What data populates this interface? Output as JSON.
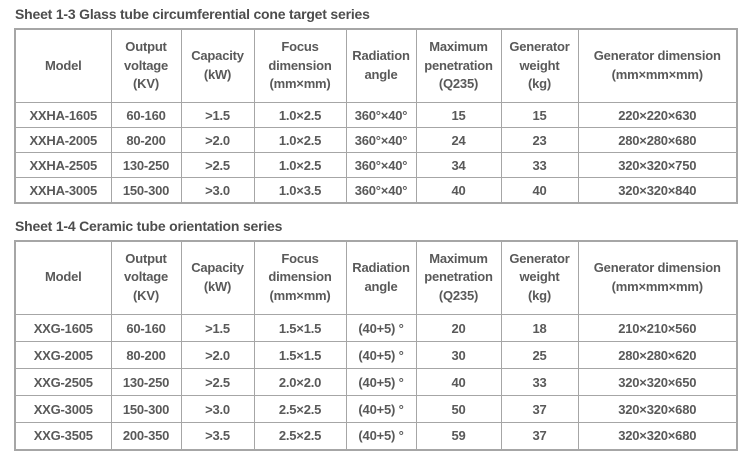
{
  "page": {
    "background_color": "#ffffff",
    "text_color": "#595959",
    "border_color": "#a6a6a6"
  },
  "tables": [
    {
      "title": "Sheet 1-3 Glass tube circumferential cone target series",
      "headers": [
        "Model",
        "Output\nvoltage\n(KV)",
        "Capacity\n(kW)",
        "Focus\ndimension\n(mm×mm)",
        "Radiation\nangle",
        "Maximum\npenetration\n(Q235)",
        "Generator\nweight\n(kg)",
        "Generator dimension\n(mm×mm×mm)"
      ],
      "rows": [
        [
          "XXHA-1605",
          "60-160",
          ">1.5",
          "1.0×2.5",
          "360°×40°",
          "15",
          "15",
          "220×220×630"
        ],
        [
          "XXHA-2005",
          "80-200",
          ">2.0",
          "1.0×2.5",
          "360°×40°",
          "24",
          "23",
          "280×280×680"
        ],
        [
          "XXHA-2505",
          "130-250",
          ">2.5",
          "1.0×2.5",
          "360°×40°",
          "34",
          "33",
          "320×320×750"
        ],
        [
          "XXHA-3005",
          "150-300",
          ">3.0",
          "1.0×3.5",
          "360°×40°",
          "40",
          "40",
          "320×320×840"
        ]
      ]
    },
    {
      "title": "Sheet 1-4 Ceramic tube orientation series",
      "headers": [
        "Model",
        "Output\nvoltage\n(KV)",
        "Capacity\n(kW)",
        "Focus\ndimension\n(mm×mm)",
        "Radiation\nangle",
        "Maximum\npenetration\n(Q235)",
        "Generator\nweight\n(kg)",
        "Generator dimension\n(mm×mm×mm)"
      ],
      "rows": [
        [
          "XXG-1605",
          "60-160",
          ">1.5",
          "1.5×1.5",
          "(40+5) °",
          "20",
          "18",
          "210×210×560"
        ],
        [
          "XXG-2005",
          "80-200",
          ">2.0",
          "1.5×1.5",
          "(40+5) °",
          "30",
          "25",
          "280×280×620"
        ],
        [
          "XXG-2505",
          "130-250",
          ">2.5",
          "2.0×2.0",
          "(40+5) °",
          "40",
          "33",
          "320×320×650"
        ],
        [
          "XXG-3005",
          "150-300",
          ">3.0",
          "2.5×2.5",
          "(40+5) °",
          "50",
          "37",
          "320×320×680"
        ],
        [
          "XXG-3505",
          "200-350",
          ">3.5",
          "2.5×2.5",
          "(40+5) °",
          "59",
          "37",
          "320×320×680"
        ]
      ]
    }
  ]
}
